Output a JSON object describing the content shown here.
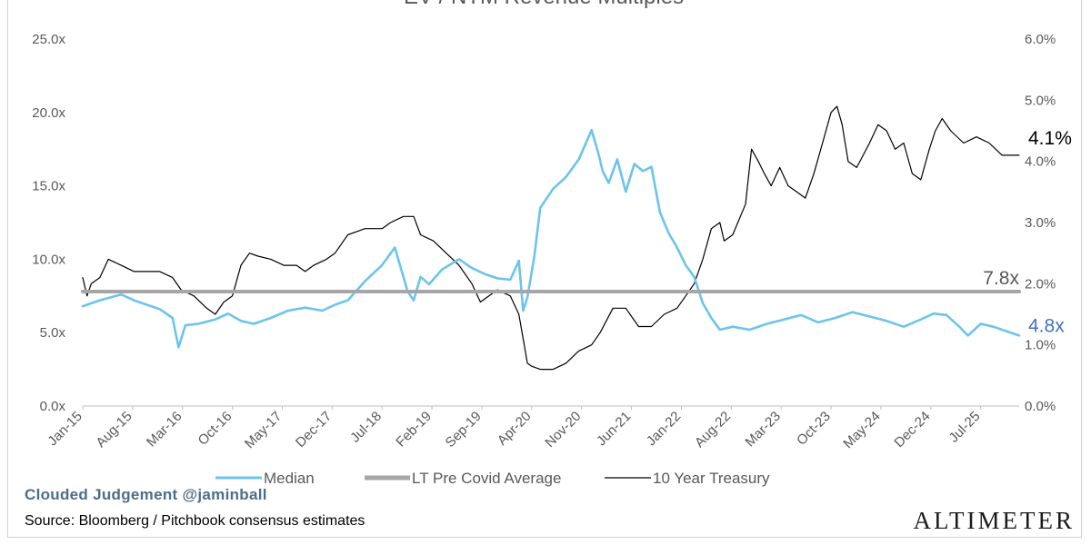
{
  "chart_data": {
    "type": "line",
    "title": "EV / NTM Revenue Multiples",
    "x_tick_labels": [
      "Jan-15",
      "Aug-15",
      "Mar-16",
      "Oct-16",
      "May-17",
      "Dec-17",
      "Jul-18",
      "Feb-19",
      "Sep-19",
      "Apr-20",
      "Nov-20",
      "Jun-21",
      "Jan-22",
      "Aug-22",
      "Mar-23",
      "Oct-23",
      "May-24",
      "Dec-24",
      "Jul-25"
    ],
    "x_range": [
      2015.0,
      2025.95
    ],
    "y_left": {
      "min": 0,
      "max": 25,
      "ticks": [
        "0.0x",
        "5.0x",
        "10.0x",
        "15.0x",
        "20.0x",
        "25.0x"
      ]
    },
    "y_right": {
      "min": 0,
      "max": 6,
      "ticks": [
        "0.0%",
        "1.0%",
        "2.0%",
        "3.0%",
        "4.0%",
        "5.0%",
        "6.0%"
      ]
    },
    "series": [
      {
        "name": "Median",
        "axis": "left",
        "color": "#6cc4ec",
        "x": [
          2015.0,
          2015.2,
          2015.45,
          2015.6,
          2015.75,
          2015.9,
          2016.05,
          2016.12,
          2016.2,
          2016.35,
          2016.55,
          2016.7,
          2016.85,
          2017.0,
          2017.2,
          2017.4,
          2017.6,
          2017.8,
          2017.95,
          2018.1,
          2018.3,
          2018.5,
          2018.65,
          2018.8,
          2018.87,
          2018.95,
          2019.05,
          2019.2,
          2019.4,
          2019.55,
          2019.7,
          2019.85,
          2020.0,
          2020.1,
          2020.15,
          2020.2,
          2020.28,
          2020.35,
          2020.5,
          2020.65,
          2020.8,
          2020.95,
          2021.03,
          2021.08,
          2021.15,
          2021.25,
          2021.35,
          2021.45,
          2021.55,
          2021.65,
          2021.75,
          2021.85,
          2021.95,
          2022.05,
          2022.15,
          2022.25,
          2022.35,
          2022.45,
          2022.6,
          2022.8,
          2023.0,
          2023.2,
          2023.4,
          2023.6,
          2023.8,
          2024.0,
          2024.2,
          2024.4,
          2024.6,
          2024.8,
          2024.95,
          2025.1,
          2025.25,
          2025.35,
          2025.5,
          2025.65,
          2025.8,
          2025.95
        ],
        "values": [
          6.8,
          7.2,
          7.6,
          7.2,
          6.9,
          6.6,
          6.0,
          4.0,
          5.5,
          5.6,
          5.9,
          6.3,
          5.8,
          5.6,
          6.0,
          6.5,
          6.7,
          6.5,
          6.9,
          7.2,
          8.5,
          9.6,
          10.8,
          7.8,
          7.2,
          8.8,
          8.3,
          9.3,
          10.0,
          9.4,
          9.0,
          8.7,
          8.6,
          9.9,
          6.5,
          7.4,
          10.2,
          13.5,
          14.8,
          15.6,
          16.8,
          18.8,
          17.2,
          16.0,
          15.2,
          16.8,
          14.6,
          16.5,
          16.0,
          16.3,
          13.2,
          11.8,
          10.8,
          9.6,
          8.8,
          7.0,
          6.0,
          5.2,
          5.4,
          5.2,
          5.6,
          5.9,
          6.2,
          5.7,
          6.0,
          6.4,
          6.1,
          5.8,
          5.4,
          5.9,
          6.3,
          6.2,
          5.4,
          4.8,
          5.6,
          5.4,
          5.1,
          4.8
        ]
      },
      {
        "name": "LT Pre Covid Average",
        "axis": "left",
        "color": "#a6a6a6",
        "x": [
          2015.0,
          2025.95
        ],
        "values": [
          7.8,
          7.8
        ]
      },
      {
        "name": "10 Year Treasury",
        "axis": "right",
        "color": "#000000",
        "x": [
          2015.0,
          2015.05,
          2015.1,
          2015.2,
          2015.3,
          2015.45,
          2015.6,
          2015.75,
          2015.9,
          2016.05,
          2016.15,
          2016.3,
          2016.45,
          2016.55,
          2016.65,
          2016.75,
          2016.85,
          2016.95,
          2017.05,
          2017.2,
          2017.35,
          2017.5,
          2017.6,
          2017.7,
          2017.85,
          2017.95,
          2018.1,
          2018.3,
          2018.5,
          2018.6,
          2018.75,
          2018.87,
          2018.95,
          2019.1,
          2019.25,
          2019.4,
          2019.55,
          2019.65,
          2019.75,
          2019.85,
          2020.0,
          2020.1,
          2020.15,
          2020.2,
          2020.25,
          2020.35,
          2020.5,
          2020.65,
          2020.8,
          2020.95,
          2021.05,
          2021.2,
          2021.35,
          2021.5,
          2021.65,
          2021.8,
          2021.95,
          2022.05,
          2022.15,
          2022.25,
          2022.35,
          2022.45,
          2022.5,
          2022.6,
          2022.75,
          2022.82,
          2022.9,
          2022.97,
          2023.05,
          2023.15,
          2023.25,
          2023.35,
          2023.45,
          2023.55,
          2023.65,
          2023.75,
          2023.82,
          2023.88,
          2023.95,
          2024.05,
          2024.2,
          2024.3,
          2024.4,
          2024.5,
          2024.6,
          2024.7,
          2024.8,
          2024.9,
          2024.97,
          2025.05,
          2025.15,
          2025.3,
          2025.45,
          2025.6,
          2025.75,
          2025.85,
          2025.95
        ],
        "values": [
          2.1,
          1.8,
          2.0,
          2.1,
          2.4,
          2.3,
          2.2,
          2.2,
          2.2,
          2.1,
          1.9,
          1.8,
          1.6,
          1.5,
          1.7,
          1.8,
          2.3,
          2.5,
          2.45,
          2.4,
          2.3,
          2.3,
          2.2,
          2.3,
          2.4,
          2.5,
          2.8,
          2.9,
          2.9,
          3.0,
          3.1,
          3.1,
          2.8,
          2.7,
          2.5,
          2.3,
          2.0,
          1.7,
          1.8,
          1.9,
          1.8,
          1.5,
          1.1,
          0.7,
          0.65,
          0.6,
          0.6,
          0.7,
          0.9,
          1.0,
          1.2,
          1.6,
          1.6,
          1.3,
          1.3,
          1.5,
          1.6,
          1.8,
          2.0,
          2.4,
          2.9,
          3.0,
          2.7,
          2.8,
          3.3,
          4.2,
          4.0,
          3.8,
          3.6,
          3.9,
          3.6,
          3.5,
          3.4,
          3.8,
          4.3,
          4.8,
          4.9,
          4.6,
          4.0,
          3.9,
          4.3,
          4.6,
          4.5,
          4.2,
          4.3,
          3.8,
          3.7,
          4.2,
          4.5,
          4.7,
          4.5,
          4.3,
          4.4,
          4.3,
          4.1,
          4.1,
          4.1
        ]
      }
    ],
    "end_labels": {
      "median": "4.8x",
      "average": "7.8x",
      "treasury": "4.1%"
    },
    "legend": {
      "position": "bottom",
      "items": [
        "Median",
        "LT Pre Covid Average",
        "10 Year Treasury"
      ]
    }
  },
  "footer": {
    "watermark": "Clouded Judgement @jaminball",
    "source": "Source: Bloomberg / Pitchbook consensus estimates",
    "brand": "ALTIMETER"
  },
  "colors": {
    "median": "#6cc4ec",
    "average": "#a6a6a6",
    "treasury": "#000000",
    "median_label": "#4472c4",
    "text": "#595959",
    "grid": "#d9d9d9"
  }
}
